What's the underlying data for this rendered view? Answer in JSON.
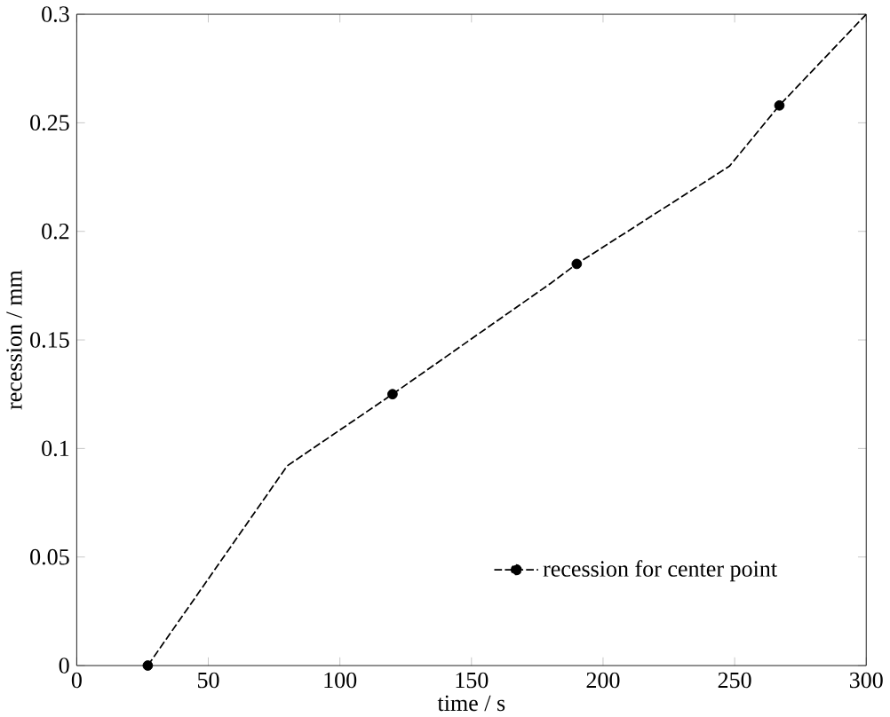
{
  "chart_data": {
    "type": "line",
    "xlabel": "time / s",
    "ylabel": "recession / mm",
    "xlim": [
      0,
      300
    ],
    "ylim": [
      0,
      0.3
    ],
    "xticks": [
      0,
      50,
      100,
      150,
      200,
      250,
      300
    ],
    "yticks": [
      0,
      0.05,
      0.1,
      0.15,
      0.2,
      0.25,
      0.3
    ],
    "legend": "bottom right",
    "series": [
      {
        "name": "recession for center point",
        "line_style": "dashed",
        "color": "#000000",
        "x": [
          27,
          80,
          120,
          180,
          190,
          248,
          267,
          300
        ],
        "values": [
          0,
          0.092,
          0.125,
          0.176,
          0.185,
          0.23,
          0.258,
          0.3
        ]
      },
      {
        "type": "scatter",
        "marker": "circle",
        "color": "#000000",
        "x": [
          27,
          120,
          190,
          267
        ],
        "values": [
          0,
          0.125,
          0.185,
          0.258
        ]
      }
    ]
  }
}
